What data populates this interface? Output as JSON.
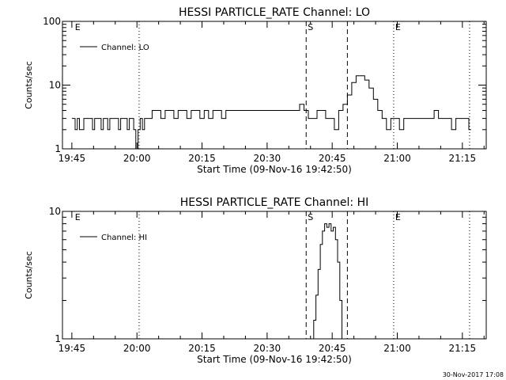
{
  "footer": {
    "timestamp": "30-Nov-2017 17:08"
  },
  "chart_data": [
    {
      "type": "line",
      "title": "HESSI PARTICLE_RATE Channel: LO",
      "xlabel": "Start Time (09-Nov-16 19:42:50)",
      "ylabel": "Counts/sec",
      "y_scale": "log",
      "ylim": [
        1,
        100
      ],
      "y_ticks": [
        {
          "value": 1,
          "label": "1"
        },
        {
          "value": 10,
          "label": "10"
        },
        {
          "value": 100,
          "label": "100"
        }
      ],
      "x_ticks": [
        "19:45",
        "20:00",
        "20:15",
        "20:30",
        "20:45",
        "21:00",
        "21:15"
      ],
      "legend": {
        "label": "Channel: LO",
        "position": "top-left"
      },
      "markers": [
        {
          "label": "E",
          "time": "19:45:20",
          "style": "none"
        },
        {
          "label": "",
          "time": "20:00:30",
          "style": "dotted"
        },
        {
          "label": "S",
          "time": "20:39:00",
          "style": "dashed"
        },
        {
          "label": "",
          "time": "20:48:30",
          "style": "dashed"
        },
        {
          "label": "E",
          "time": "20:59:10",
          "style": "dotted"
        },
        {
          "label": "",
          "time": "21:16:40",
          "style": "dotted"
        }
      ],
      "series": [
        {
          "x": [
            "19:45:00",
            "19:45:30",
            "19:46:00",
            "19:46:30",
            "19:47:00",
            "19:47:30",
            "19:48:00",
            "19:48:30",
            "19:49:00",
            "19:49:30",
            "19:50:00",
            "19:50:30",
            "19:51:00",
            "19:51:30",
            "19:52:00",
            "19:52:30",
            "19:53:00",
            "19:53:30",
            "19:54:00",
            "19:54:30",
            "19:55:00",
            "19:55:30",
            "19:56:00",
            "19:56:30",
            "19:57:00",
            "19:57:30",
            "19:58:00",
            "19:58:30",
            "19:59:00",
            "19:59:30",
            "20:00:00",
            "20:00:30",
            "20:01:00",
            "20:01:30",
            "20:02:00",
            "20:03:00",
            "20:04:00",
            "20:05:00",
            "20:06:00",
            "20:07:00",
            "20:08:00",
            "20:09:00",
            "20:10:00",
            "20:11:00",
            "20:12:00",
            "20:13:00",
            "20:14:00",
            "20:15:00",
            "20:16:00",
            "20:17:00",
            "20:18:00",
            "20:19:00",
            "20:20:00",
            "20:21:00",
            "20:22:00",
            "20:23:00",
            "20:24:00",
            "20:25:00",
            "20:26:00",
            "20:27:00",
            "20:28:00",
            "20:29:00",
            "20:30:00",
            "20:31:00",
            "20:32:00",
            "20:33:00",
            "20:34:00",
            "20:35:00",
            "20:36:00",
            "20:37:00",
            "20:38:00",
            "20:39:00",
            "20:40:00",
            "20:41:00",
            "20:42:00",
            "20:43:00",
            "20:44:00",
            "20:45:00",
            "20:46:00",
            "20:47:00",
            "20:48:00",
            "20:49:00",
            "20:50:00",
            "20:51:00",
            "20:52:00",
            "20:53:00",
            "20:54:00",
            "20:55:00",
            "20:56:00",
            "20:57:00",
            "20:58:00",
            "20:59:00",
            "21:00:00",
            "21:01:00",
            "21:02:00",
            "21:03:00",
            "21:04:00",
            "21:05:00",
            "21:06:00",
            "21:07:00",
            "21:08:00",
            "21:09:00",
            "21:10:00",
            "21:11:00",
            "21:12:00",
            "21:13:00",
            "21:14:00",
            "21:15:00",
            "21:16:00",
            "21:17:00"
          ],
          "y": [
            3,
            3,
            2,
            3,
            2,
            2,
            3,
            3,
            3,
            3,
            2,
            3,
            3,
            3,
            2,
            3,
            3,
            2,
            3,
            3,
            3,
            3,
            2,
            3,
            3,
            3,
            2,
            3,
            3,
            2,
            1,
            2,
            3,
            2,
            3,
            3,
            4,
            4,
            3,
            4,
            4,
            3,
            4,
            4,
            3,
            4,
            4,
            3,
            4,
            3,
            4,
            4,
            3,
            4,
            4,
            4,
            4,
            4,
            4,
            4,
            4,
            4,
            4,
            4,
            4,
            4,
            4,
            4,
            4,
            4,
            5,
            4,
            3,
            3,
            4,
            4,
            3,
            3,
            2,
            4,
            5,
            7,
            11,
            14,
            14,
            12,
            9,
            6,
            4,
            3,
            2,
            3,
            3,
            2,
            3,
            3,
            3,
            3,
            3,
            3,
            3,
            4,
            3,
            3,
            3,
            2,
            3,
            3,
            3,
            2
          ]
        }
      ]
    },
    {
      "type": "line",
      "title": "HESSI PARTICLE_RATE Channel: HI",
      "xlabel": "Start Time (09-Nov-16 19:42:50)",
      "ylabel": "Counts/sec",
      "y_scale": "log",
      "ylim": [
        1,
        10
      ],
      "y_ticks": [
        {
          "value": 1,
          "label": "1"
        },
        {
          "value": 10,
          "label": "10"
        }
      ],
      "x_ticks": [
        "19:45",
        "20:00",
        "20:15",
        "20:30",
        "20:45",
        "21:00",
        "21:15"
      ],
      "legend": {
        "label": "Channel: HI",
        "position": "top-left"
      },
      "markers": [
        {
          "label": "E",
          "time": "19:45:20",
          "style": "none"
        },
        {
          "label": "",
          "time": "20:00:30",
          "style": "dotted"
        },
        {
          "label": "S",
          "time": "20:39:00",
          "style": "dashed"
        },
        {
          "label": "",
          "time": "20:48:30",
          "style": "dashed"
        },
        {
          "label": "E",
          "time": "20:59:10",
          "style": "dotted"
        },
        {
          "label": "",
          "time": "21:16:40",
          "style": "dotted"
        }
      ],
      "series": [
        {
          "x": [
            "20:40:30",
            "20:41:00",
            "20:41:30",
            "20:42:00",
            "20:42:30",
            "20:43:00",
            "20:43:30",
            "20:44:00",
            "20:44:30",
            "20:45:00",
            "20:45:30",
            "20:46:00",
            "20:46:30",
            "20:47:00",
            "20:47:30"
          ],
          "y": [
            1,
            1.4,
            2.2,
            3.5,
            5.5,
            7,
            8,
            7.5,
            8,
            7,
            7.5,
            6,
            4,
            2,
            1
          ]
        }
      ]
    }
  ]
}
